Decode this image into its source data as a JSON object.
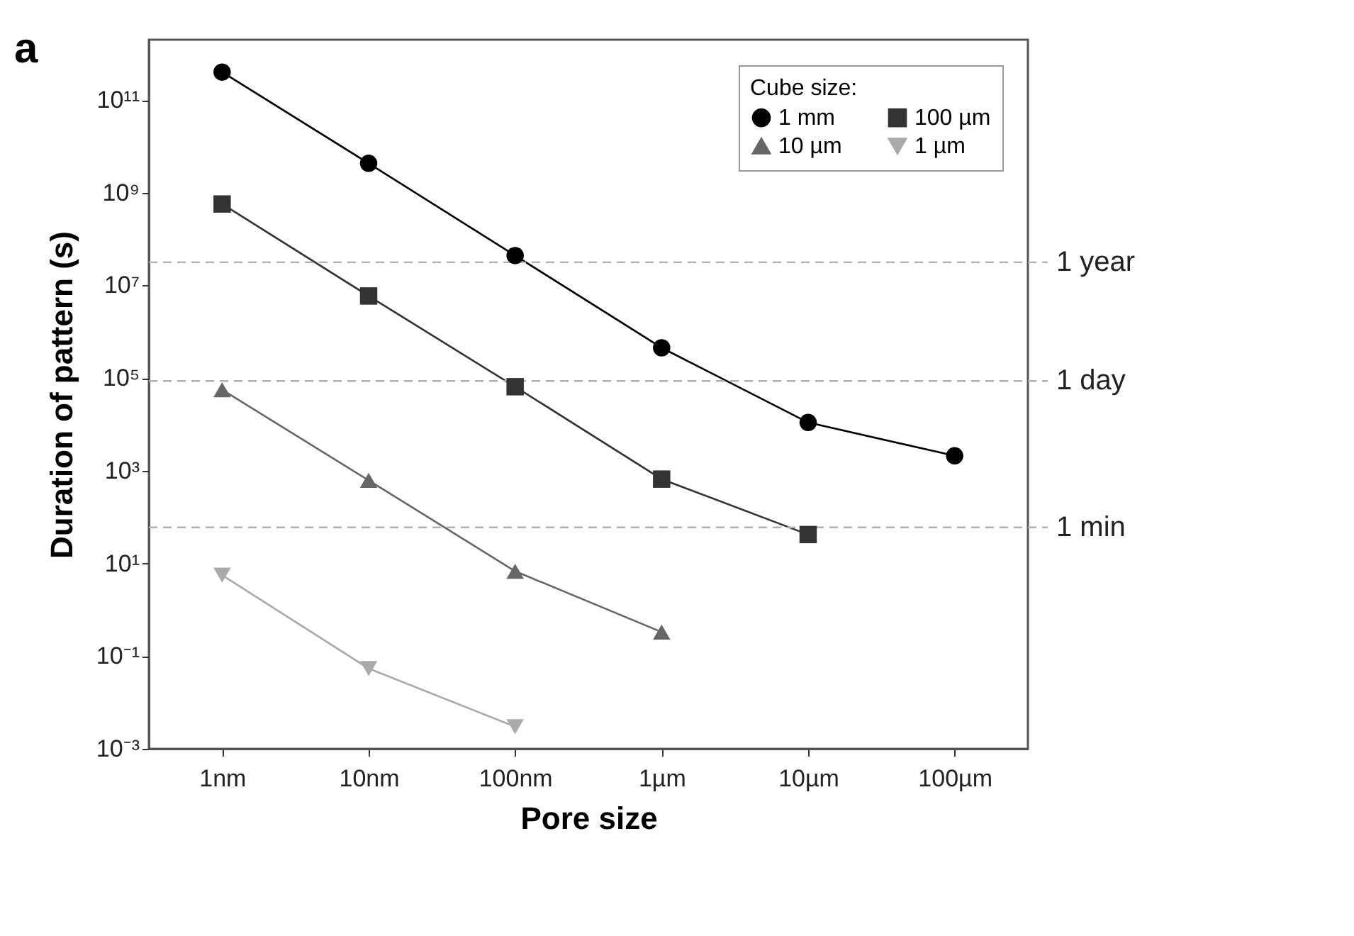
{
  "chart_data": {
    "type": "line",
    "annotations": [
      "a"
    ],
    "xlabel": "Pore size",
    "ylabel": "Duration of pattern (s)",
    "legend_title": "Cube size:",
    "legend": "top right",
    "log": "y",
    "grid": false,
    "line_style": "solid",
    "categories": [
      "1nm",
      "10nm",
      "100nm",
      "1µm",
      "10µm",
      "100µm"
    ],
    "ylim": [
      0.001,
      2000000000000
    ],
    "yticks": [
      {
        "value": 0.001,
        "label": "10⁻³"
      },
      {
        "value": 0.1,
        "label": "10⁻¹"
      },
      {
        "value": 10,
        "label": "10¹"
      },
      {
        "value": 1000,
        "label": "10³"
      },
      {
        "value": 100000,
        "label": "10⁵"
      },
      {
        "value": 10000000,
        "label": "10⁷"
      },
      {
        "value": 1000000000,
        "label": "10⁹"
      },
      {
        "value": 100000000000,
        "label": "10¹¹"
      }
    ],
    "series": [
      {
        "name": "1 mm",
        "color": "#000000",
        "marker": "circle",
        "values": [
          400000000000,
          4300000000,
          44000000,
          450000,
          11000,
          2100
        ]
      },
      {
        "name": "100 µm",
        "color": "#333333",
        "marker": "square",
        "values": [
          570000000,
          5900000,
          65000,
          660,
          42,
          null
        ]
      },
      {
        "name": "10 µm",
        "color": "#666666",
        "marker": "triangle",
        "values": [
          56000,
          620,
          6.8,
          0.33,
          null,
          null
        ]
      },
      {
        "name": "1 µm",
        "color": "#aaaaaa",
        "marker": "triangle-down",
        "values": [
          5.6,
          0.054,
          0.003,
          null,
          null,
          null
        ]
      }
    ],
    "ref_lines": [
      {
        "axis": "y",
        "value": 31536000,
        "label": "1 year",
        "color": "#b0b0b0",
        "line_style": "dashed"
      },
      {
        "axis": "y",
        "value": 86400,
        "label": "1 day",
        "color": "#b0b0b0",
        "line_style": "dashed"
      },
      {
        "axis": "y",
        "value": 60,
        "label": "1 min",
        "color": "#b0b0b0",
        "line_style": "dashed"
      }
    ]
  }
}
